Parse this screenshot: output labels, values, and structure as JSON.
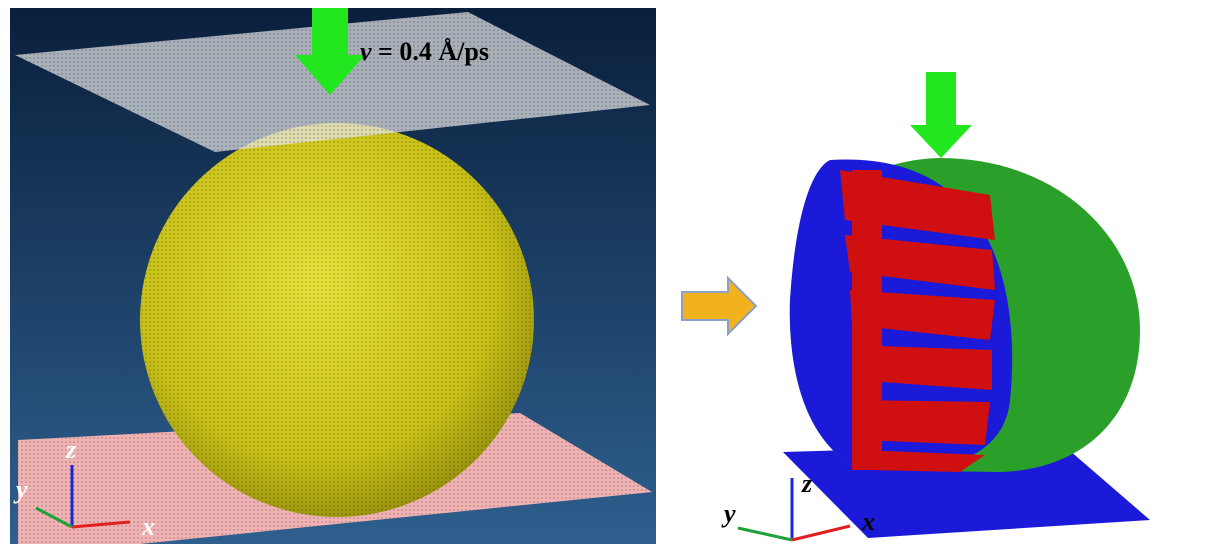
{
  "left_panel": {
    "velocity_label": {
      "symbol": "v",
      "value": "= 0.4 Å/ps"
    },
    "axes": {
      "z": "z",
      "y": "y",
      "x": "x"
    }
  },
  "right_panel": {
    "axes": {
      "z": "z",
      "y": "y",
      "x": "x"
    }
  }
}
